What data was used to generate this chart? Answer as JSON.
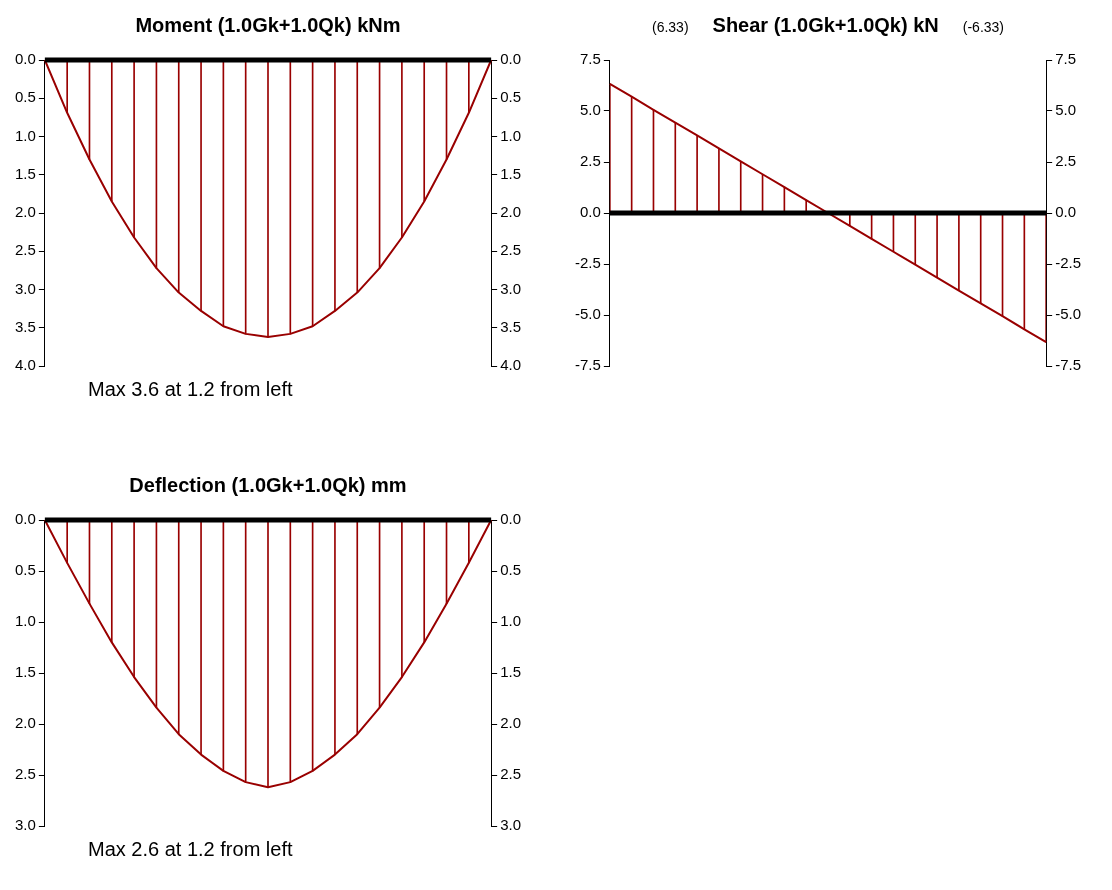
{
  "chart_data": [
    {
      "type": "line",
      "title": "Moment (1.0Gk+1.0Qk) kNm",
      "annotations": [
        "Max 3.6 at 1.2 from left"
      ],
      "categories": [
        null,
        null,
        null,
        null,
        null,
        null,
        null,
        null,
        null,
        null,
        null,
        null,
        null,
        null,
        null,
        null,
        null,
        null,
        null,
        null,
        null
      ],
      "series": [
        {
          "type": "bar",
          "color": "#990000",
          "values": [
            0,
            0.69,
            1.3,
            1.85,
            2.32,
            2.72,
            3.04,
            3.28,
            3.48,
            3.58,
            3.62,
            3.58,
            3.48,
            3.28,
            3.04,
            2.72,
            2.32,
            1.85,
            1.3,
            0.69,
            0
          ]
        },
        {
          "color": "#990000",
          "values": [
            0,
            0.69,
            1.3,
            1.85,
            2.32,
            2.72,
            3.04,
            3.28,
            3.48,
            3.58,
            3.62,
            3.58,
            3.48,
            3.28,
            3.04,
            2.72,
            2.32,
            1.85,
            1.3,
            0.69,
            0
          ]
        }
      ],
      "ylim": [
        4,
        0
      ],
      "yticks": [
        {
          "value": 0,
          "label": "0.0"
        },
        {
          "value": 0.5,
          "label": "0.5"
        },
        {
          "value": 1,
          "label": "1.0"
        },
        {
          "value": 1.5,
          "label": "1.5"
        },
        {
          "value": 2,
          "label": "2.0"
        },
        {
          "value": 2.5,
          "label": "2.5"
        },
        {
          "value": 3,
          "label": "3.0"
        },
        {
          "value": 3.5,
          "label": "3.5"
        },
        {
          "value": 4,
          "label": "4.0"
        }
      ],
      "y2lim": [
        4,
        0
      ],
      "y2ticks": [
        {
          "value": 0,
          "label": "0.0"
        },
        {
          "value": 0.5,
          "label": "0.5"
        },
        {
          "value": 1,
          "label": "1.0"
        },
        {
          "value": 1.5,
          "label": "1.5"
        },
        {
          "value": 2,
          "label": "2.0"
        },
        {
          "value": 2.5,
          "label": "2.5"
        },
        {
          "value": 3,
          "label": "3.0"
        },
        {
          "value": 3.5,
          "label": "3.5"
        },
        {
          "value": 4,
          "label": "4.0"
        }
      ],
      "ref_lines": [
        {
          "axis": "y",
          "value": 0,
          "color": "#000000"
        }
      ],
      "tick_labels": "y",
      "grid": false,
      "legend": false,
      "marker": "none",
      "line_style": "solid"
    },
    {
      "type": "line",
      "title": "Shear (1.0Gk+1.0Qk) kN",
      "annotations": [
        "(6.33)",
        "(-6.33)"
      ],
      "categories": [
        null,
        null,
        null,
        null,
        null,
        null,
        null,
        null,
        null,
        null,
        null,
        null,
        null,
        null,
        null,
        null,
        null,
        null,
        null,
        null,
        null
      ],
      "series": [
        {
          "type": "bar",
          "color": "#990000",
          "values": [
            6.33,
            5.7,
            5.06,
            4.43,
            3.8,
            3.17,
            2.53,
            1.9,
            1.27,
            0.63,
            0,
            -0.63,
            -1.27,
            -1.9,
            -2.53,
            -3.17,
            -3.8,
            -4.43,
            -5.06,
            -5.7,
            -6.33
          ]
        },
        {
          "color": "#990000",
          "values": [
            6.33,
            5.7,
            5.06,
            4.43,
            3.8,
            3.17,
            2.53,
            1.9,
            1.27,
            0.63,
            0,
            -0.63,
            -1.27,
            -1.9,
            -2.53,
            -3.17,
            -3.8,
            -4.43,
            -5.06,
            -5.7,
            -6.33
          ]
        }
      ],
      "ylim": [
        -7.5,
        7.5
      ],
      "yticks": [
        {
          "value": -7.5,
          "label": "-7.5"
        },
        {
          "value": -5,
          "label": "-5.0"
        },
        {
          "value": -2.5,
          "label": "-2.5"
        },
        {
          "value": 0,
          "label": "0.0"
        },
        {
          "value": 2.5,
          "label": "2.5"
        },
        {
          "value": 5,
          "label": "5.0"
        },
        {
          "value": 7.5,
          "label": "7.5"
        }
      ],
      "y2lim": [
        -7.5,
        7.5
      ],
      "y2ticks": [
        {
          "value": -7.5,
          "label": "-7.5"
        },
        {
          "value": -5,
          "label": "-5.0"
        },
        {
          "value": -2.5,
          "label": "-2.5"
        },
        {
          "value": 0,
          "label": "0.0"
        },
        {
          "value": 2.5,
          "label": "2.5"
        },
        {
          "value": 5,
          "label": "5.0"
        },
        {
          "value": 7.5,
          "label": "7.5"
        }
      ],
      "ref_lines": [
        {
          "axis": "y",
          "value": 0,
          "color": "#000000"
        }
      ],
      "tick_labels": "y",
      "grid": false,
      "legend": false,
      "marker": "none",
      "line_style": "solid"
    },
    {
      "type": "line",
      "title": "Deflection  (1.0Gk+1.0Qk) mm",
      "annotations": [
        "Max 2.6 at 1.2 from left"
      ],
      "categories": [
        null,
        null,
        null,
        null,
        null,
        null,
        null,
        null,
        null,
        null,
        null,
        null,
        null,
        null,
        null,
        null,
        null,
        null,
        null,
        null,
        null
      ],
      "series": [
        {
          "type": "bar",
          "color": "#990000",
          "values": [
            0,
            0.42,
            0.82,
            1.2,
            1.54,
            1.84,
            2.1,
            2.3,
            2.46,
            2.57,
            2.62,
            2.57,
            2.46,
            2.3,
            2.1,
            1.84,
            1.54,
            1.2,
            0.82,
            0.42,
            0
          ]
        },
        {
          "color": "#990000",
          "values": [
            0,
            0.42,
            0.82,
            1.2,
            1.54,
            1.84,
            2.1,
            2.3,
            2.46,
            2.57,
            2.62,
            2.57,
            2.46,
            2.3,
            2.1,
            1.84,
            1.54,
            1.2,
            0.82,
            0.42,
            0
          ]
        }
      ],
      "ylim": [
        3,
        0
      ],
      "yticks": [
        {
          "value": 0,
          "label": "0.0"
        },
        {
          "value": 0.5,
          "label": "0.5"
        },
        {
          "value": 1,
          "label": "1.0"
        },
        {
          "value": 1.5,
          "label": "1.5"
        },
        {
          "value": 2,
          "label": "2.0"
        },
        {
          "value": 2.5,
          "label": "2.5"
        },
        {
          "value": 3,
          "label": "3.0"
        }
      ],
      "y2lim": [
        3,
        0
      ],
      "y2ticks": [
        {
          "value": 0,
          "label": "0.0"
        },
        {
          "value": 0.5,
          "label": "0.5"
        },
        {
          "value": 1,
          "label": "1.0"
        },
        {
          "value": 1.5,
          "label": "1.5"
        },
        {
          "value": 2,
          "label": "2.0"
        },
        {
          "value": 2.5,
          "label": "2.5"
        },
        {
          "value": 3,
          "label": "3.0"
        }
      ],
      "ref_lines": [
        {
          "axis": "y",
          "value": 0,
          "color": "#000000"
        }
      ],
      "tick_labels": "y",
      "grid": false,
      "legend": false,
      "marker": "none",
      "line_style": "solid"
    }
  ]
}
